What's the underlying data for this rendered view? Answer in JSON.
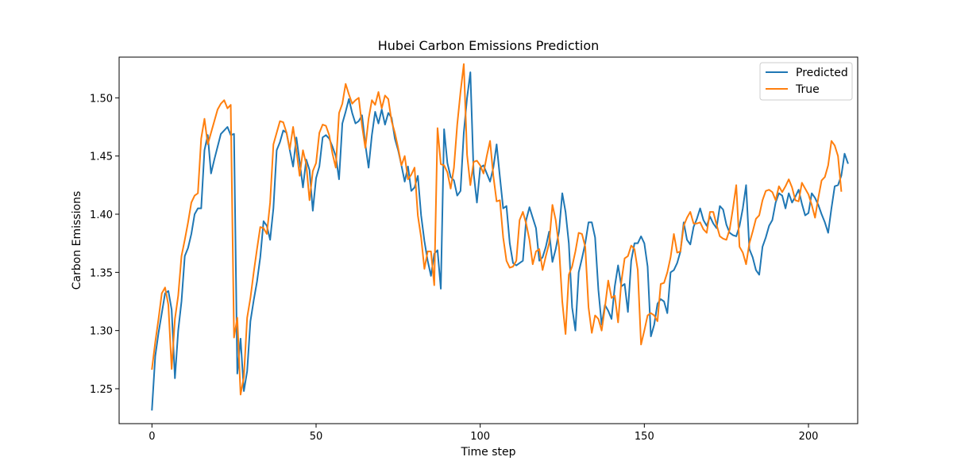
{
  "chart_data": {
    "type": "line",
    "title": "Hubei Carbon Emissions Prediction",
    "xlabel": "Time step",
    "ylabel": "Carbon Emissions",
    "xlim": [
      -10,
      215
    ],
    "ylim": [
      1.22,
      1.535
    ],
    "xticks": [
      0,
      50,
      100,
      150,
      200
    ],
    "yticks": [
      1.25,
      1.3,
      1.35,
      1.4,
      1.45,
      1.5
    ],
    "ytick_labels": [
      "1.25",
      "1.30",
      "1.35",
      "1.40",
      "1.45",
      "1.50"
    ],
    "grid": false,
    "legend_position": "top-right",
    "series": [
      {
        "name": "Predicted",
        "color": "#1f77b4",
        "values": [
          1.232,
          1.278,
          1.298,
          1.315,
          1.332,
          1.334,
          1.318,
          1.259,
          1.3,
          1.325,
          1.364,
          1.371,
          1.383,
          1.4,
          1.405,
          1.405,
          1.455,
          1.468,
          1.435,
          1.447,
          1.458,
          1.469,
          1.472,
          1.475,
          1.468,
          1.469,
          1.263,
          1.293,
          1.248,
          1.265,
          1.308,
          1.326,
          1.342,
          1.363,
          1.394,
          1.39,
          1.378,
          1.405,
          1.455,
          1.462,
          1.472,
          1.47,
          1.455,
          1.441,
          1.466,
          1.445,
          1.423,
          1.447,
          1.438,
          1.403,
          1.431,
          1.441,
          1.466,
          1.468,
          1.465,
          1.458,
          1.45,
          1.43,
          1.478,
          1.488,
          1.499,
          1.487,
          1.478,
          1.48,
          1.485,
          1.46,
          1.44,
          1.468,
          1.488,
          1.478,
          1.49,
          1.477,
          1.487,
          1.483,
          1.465,
          1.455,
          1.442,
          1.428,
          1.441,
          1.42,
          1.423,
          1.433,
          1.399,
          1.377,
          1.36,
          1.347,
          1.366,
          1.369,
          1.336,
          1.473,
          1.444,
          1.432,
          1.429,
          1.416,
          1.42,
          1.47,
          1.5,
          1.522,
          1.435,
          1.41,
          1.44,
          1.442,
          1.435,
          1.428,
          1.44,
          1.46,
          1.432,
          1.405,
          1.407,
          1.375,
          1.358,
          1.356,
          1.358,
          1.36,
          1.395,
          1.406,
          1.397,
          1.388,
          1.36,
          1.363,
          1.372,
          1.385,
          1.359,
          1.37,
          1.385,
          1.418,
          1.402,
          1.375,
          1.32,
          1.3,
          1.35,
          1.362,
          1.375,
          1.393,
          1.393,
          1.38,
          1.335,
          1.305,
          1.322,
          1.317,
          1.31,
          1.338,
          1.356,
          1.338,
          1.34,
          1.316,
          1.36,
          1.375,
          1.375,
          1.381,
          1.375,
          1.355,
          1.295,
          1.305,
          1.323,
          1.327,
          1.325,
          1.315,
          1.35,
          1.352,
          1.358,
          1.368,
          1.393,
          1.378,
          1.374,
          1.389,
          1.396,
          1.405,
          1.395,
          1.39,
          1.398,
          1.392,
          1.388,
          1.407,
          1.404,
          1.391,
          1.384,
          1.382,
          1.381,
          1.39,
          1.405,
          1.425,
          1.37,
          1.363,
          1.352,
          1.348,
          1.372,
          1.38,
          1.39,
          1.395,
          1.41,
          1.418,
          1.416,
          1.405,
          1.418,
          1.41,
          1.415,
          1.421,
          1.409,
          1.399,
          1.401,
          1.418,
          1.414,
          1.408,
          1.4,
          1.393,
          1.384,
          1.405,
          1.424,
          1.425,
          1.433,
          1.452,
          1.444
        ]
      },
      {
        "name": "True",
        "color": "#ff7f0e",
        "values": [
          1.267,
          1.29,
          1.31,
          1.332,
          1.337,
          1.322,
          1.267,
          1.31,
          1.33,
          1.364,
          1.378,
          1.393,
          1.41,
          1.416,
          1.418,
          1.465,
          1.482,
          1.46,
          1.47,
          1.48,
          1.49,
          1.495,
          1.498,
          1.491,
          1.494,
          1.294,
          1.311,
          1.245,
          1.26,
          1.311,
          1.328,
          1.35,
          1.37,
          1.389,
          1.388,
          1.383,
          1.41,
          1.46,
          1.47,
          1.48,
          1.479,
          1.47,
          1.456,
          1.475,
          1.455,
          1.433,
          1.455,
          1.443,
          1.412,
          1.437,
          1.444,
          1.47,
          1.477,
          1.476,
          1.468,
          1.452,
          1.44,
          1.487,
          1.495,
          1.512,
          1.503,
          1.495,
          1.498,
          1.5,
          1.476,
          1.457,
          1.482,
          1.498,
          1.494,
          1.505,
          1.491,
          1.502,
          1.499,
          1.48,
          1.47,
          1.457,
          1.442,
          1.45,
          1.43,
          1.434,
          1.44,
          1.399,
          1.38,
          1.353,
          1.368,
          1.368,
          1.339,
          1.474,
          1.443,
          1.442,
          1.436,
          1.422,
          1.44,
          1.477,
          1.505,
          1.529,
          1.451,
          1.425,
          1.445,
          1.446,
          1.442,
          1.435,
          1.45,
          1.463,
          1.433,
          1.411,
          1.412,
          1.38,
          1.36,
          1.354,
          1.355,
          1.36,
          1.395,
          1.402,
          1.392,
          1.378,
          1.357,
          1.368,
          1.37,
          1.352,
          1.364,
          1.375,
          1.408,
          1.395,
          1.372,
          1.325,
          1.297,
          1.348,
          1.355,
          1.368,
          1.384,
          1.383,
          1.372,
          1.32,
          1.298,
          1.313,
          1.31,
          1.3,
          1.32,
          1.343,
          1.328,
          1.33,
          1.307,
          1.342,
          1.362,
          1.364,
          1.373,
          1.37,
          1.352,
          1.288,
          1.3,
          1.313,
          1.315,
          1.313,
          1.308,
          1.34,
          1.341,
          1.35,
          1.363,
          1.383,
          1.367,
          1.368,
          1.39,
          1.397,
          1.402,
          1.392,
          1.392,
          1.393,
          1.387,
          1.384,
          1.402,
          1.402,
          1.391,
          1.381,
          1.379,
          1.378,
          1.387,
          1.405,
          1.425,
          1.372,
          1.367,
          1.357,
          1.375,
          1.385,
          1.396,
          1.399,
          1.412,
          1.42,
          1.421,
          1.419,
          1.412,
          1.424,
          1.419,
          1.424,
          1.43,
          1.423,
          1.412,
          1.411,
          1.427,
          1.422,
          1.417,
          1.408,
          1.397,
          1.414,
          1.429,
          1.432,
          1.442,
          1.463,
          1.459,
          1.45,
          1.42
        ]
      }
    ]
  }
}
